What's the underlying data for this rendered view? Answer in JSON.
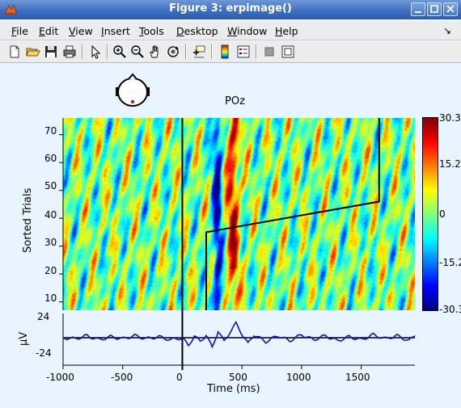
{
  "window": {
    "title": "Figure 3:  erpimage()"
  },
  "menubar": {
    "items": [
      {
        "label": "File",
        "underline": "F",
        "rest": "ile"
      },
      {
        "label": "Edit",
        "underline": "E",
        "rest": "dit"
      },
      {
        "label": "View",
        "underline": "V",
        "rest": "iew"
      },
      {
        "label": "Insert",
        "underline": "I",
        "rest": "nsert"
      },
      {
        "label": "Tools",
        "underline": "T",
        "rest": "ools"
      },
      {
        "label": "Desktop",
        "underline": "D",
        "rest": "esktop"
      },
      {
        "label": "Window",
        "underline": "W",
        "rest": "indow"
      },
      {
        "label": "Help",
        "underline": "H",
        "rest": "elp"
      }
    ]
  },
  "toolbar": {
    "buttons": [
      "new-file-icon",
      "open-folder-icon",
      "save-icon",
      "print-icon",
      "pointer-icon",
      "zoom-in-icon",
      "zoom-out-icon",
      "pan-hand-icon",
      "rotate-3d-icon",
      "data-cursor-icon",
      "colorbar-icon",
      "legend-icon",
      "hide-plot-tools-icon",
      "show-plot-tools-icon"
    ]
  },
  "figure": {
    "channel_label": "POz",
    "erpimage": {
      "ylabel": "Sorted Trials",
      "yticks": [
        "70",
        "60",
        "50",
        "40",
        "30",
        "20",
        "10"
      ],
      "colorbar_ticks": [
        "30.3",
        "15.2",
        "0",
        "-15.2",
        "-30.3"
      ]
    },
    "erp": {
      "ylabel": "μV",
      "yticks": [
        "24",
        "-24"
      ],
      "xlabel": "Time (ms)",
      "xticks": [
        "-1000",
        "-500",
        "0",
        "500",
        "1000",
        "1500"
      ]
    }
  },
  "chart_data": {
    "type": "heatmap",
    "title": "POz",
    "xlabel": "Time (ms)",
    "ylabel": "Sorted Trials",
    "xlim": [
      -1000,
      1950
    ],
    "ylim": [
      7,
      76
    ],
    "clim": [
      -30.3,
      30.3
    ],
    "colorbar_ticks": [
      30.3,
      15.2,
      0,
      -15.2,
      -30.3
    ],
    "sort_line": {
      "x_ms": [
        200,
        200,
        1650,
        1650
      ],
      "trial": [
        7,
        35,
        46,
        76
      ]
    },
    "erp_trace": {
      "ylabel": "μV",
      "ylim": [
        -24,
        24
      ],
      "x_ms": [
        -1000,
        -900,
        -800,
        -700,
        -600,
        -500,
        -400,
        -300,
        -200,
        -100,
        0,
        50,
        100,
        150,
        200,
        250,
        300,
        350,
        400,
        450,
        500,
        550,
        600,
        700,
        800,
        900,
        1000,
        1100,
        1200,
        1300,
        1400,
        1500,
        1600,
        1700,
        1800,
        1900,
        1950
      ],
      "uV": [
        0,
        -1,
        2,
        -2,
        1,
        -1,
        2,
        -1,
        1,
        -2,
        0,
        -8,
        2,
        -4,
        3,
        -10,
        7,
        -4,
        6,
        14,
        4,
        -6,
        3,
        -4,
        2,
        -3,
        3,
        -2,
        2,
        -3,
        1,
        -2,
        3,
        -1,
        2,
        -3,
        2
      ]
    }
  }
}
